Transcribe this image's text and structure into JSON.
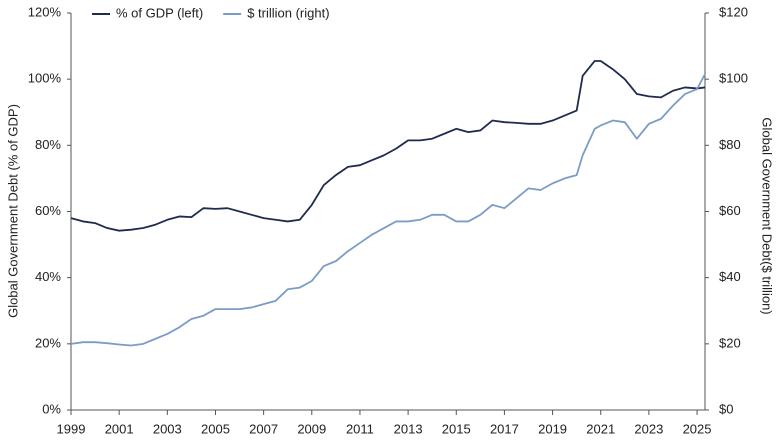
{
  "chart_data": {
    "type": "line",
    "y_label": "Global Government Debt (% of GDP)",
    "y2_label": "Global Government Debt($ trillion)",
    "x": [
      1999,
      1999.5,
      2000,
      2000.5,
      2001,
      2001.5,
      2002,
      2002.5,
      2003,
      2003.5,
      2004,
      2004.5,
      2005,
      2005.5,
      2006,
      2006.5,
      2007,
      2007.5,
      2008,
      2008.5,
      2009,
      2009.5,
      2010,
      2010.5,
      2011,
      2011.5,
      2012,
      2012.5,
      2013,
      2013.5,
      2014,
      2014.5,
      2015,
      2015.5,
      2016,
      2016.5,
      2017,
      2017.5,
      2018,
      2018.5,
      2019,
      2019.5,
      2020,
      2020.25,
      2020.75,
      2021,
      2021.5,
      2022,
      2022.5,
      2023,
      2023.5,
      2024,
      2024.5,
      2025,
      2025.33
    ],
    "series": [
      {
        "name": "% of GDP (left)",
        "color": "#1f2a4f",
        "axis": "y",
        "values": [
          58,
          57,
          56.5,
          55,
          54.2,
          54.5,
          55,
          56,
          57.5,
          58.5,
          58.3,
          61,
          60.8,
          61,
          60,
          59,
          58,
          57.5,
          57,
          57.5,
          62,
          68,
          71,
          73.5,
          74,
          75.5,
          77,
          79,
          81.5,
          81.5,
          82,
          83.5,
          85,
          84,
          84.5,
          87.5,
          87,
          86.8,
          86.5,
          86.5,
          87.5,
          89,
          90.5,
          101,
          105.5,
          105.5,
          103,
          100,
          95.5,
          94.8,
          94.5,
          96.5,
          97.5,
          97.2,
          97.5
        ]
      },
      {
        "name": "$ trillion (right)",
        "color": "#7a9cc6",
        "axis": "y2",
        "values": [
          20,
          20.5,
          20.5,
          20.2,
          19.8,
          19.5,
          20,
          21.5,
          23,
          25,
          27.5,
          28.5,
          30.5,
          30.5,
          30.5,
          31,
          32,
          33,
          36.5,
          37,
          39,
          43.5,
          45,
          48,
          50.5,
          53,
          55,
          57,
          57,
          57.5,
          59,
          59,
          57,
          57,
          59,
          62,
          61,
          64,
          67,
          66.5,
          68.5,
          70,
          71,
          77,
          85,
          86,
          87.5,
          87,
          82,
          86.5,
          88,
          92,
          95.5,
          97,
          101.5
        ]
      }
    ],
    "xlim": [
      1999,
      2025.33
    ],
    "xticks": [
      1999,
      2001,
      2003,
      2005,
      2007,
      2009,
      2011,
      2013,
      2015,
      2017,
      2019,
      2021,
      2023,
      2025
    ],
    "ylim": [
      0,
      120
    ],
    "yticks": [
      {
        "value": 0,
        "label": "0%"
      },
      {
        "value": 20,
        "label": "20%"
      },
      {
        "value": 40,
        "label": "40%"
      },
      {
        "value": 60,
        "label": "60%"
      },
      {
        "value": 80,
        "label": "80%"
      },
      {
        "value": 100,
        "label": "100%"
      },
      {
        "value": 120,
        "label": "120%"
      }
    ],
    "y2lim": [
      0,
      120
    ],
    "y2ticks": [
      {
        "value": 0,
        "label": "$0"
      },
      {
        "value": 20,
        "label": "$20"
      },
      {
        "value": 40,
        "label": "$40"
      },
      {
        "value": 60,
        "label": "$60"
      },
      {
        "value": 80,
        "label": "$80"
      },
      {
        "value": 100,
        "label": "$100"
      },
      {
        "value": 120,
        "label": "$120"
      }
    ],
    "grid": false,
    "legend": "top"
  }
}
